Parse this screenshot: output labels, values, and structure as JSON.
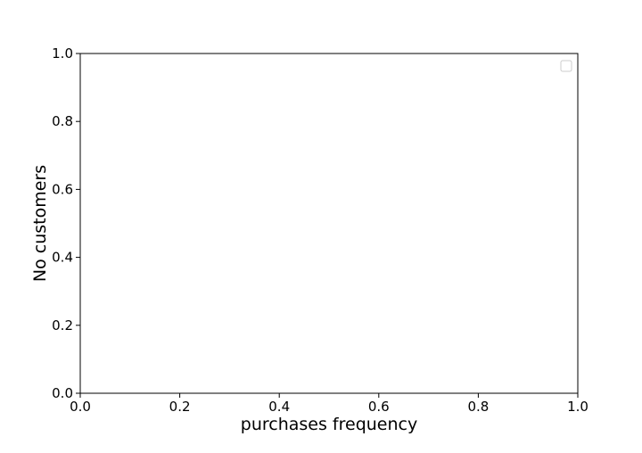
{
  "chart_data": {
    "type": "line",
    "title": "",
    "xlabel": "purchases frequency",
    "ylabel": "No customers",
    "xlim": [
      0.0,
      1.0
    ],
    "ylim": [
      0.0,
      1.0
    ],
    "xticks": [
      0.0,
      0.2,
      0.4,
      0.6,
      0.8,
      1.0
    ],
    "yticks": [
      0.0,
      0.2,
      0.4,
      0.6,
      0.8,
      1.0
    ],
    "xtick_labels": [
      "0.0",
      "0.2",
      "0.4",
      "0.6",
      "0.8",
      "1.0"
    ],
    "ytick_labels": [
      "0.0",
      "0.2",
      "0.4",
      "0.6",
      "0.8",
      "1.0"
    ],
    "series": [],
    "grid": false,
    "legend": {
      "placement": "top-right",
      "entries": []
    },
    "colors": {
      "axis": "#000000",
      "background": "#ffffff",
      "legend_border": "#cccccc"
    }
  }
}
